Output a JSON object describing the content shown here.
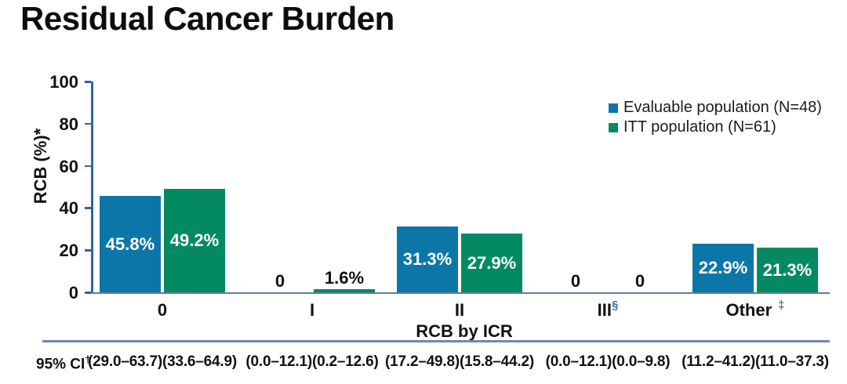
{
  "title": "Residual Cancer Burden",
  "colors": {
    "evaluable_blue": "#0d76a8",
    "itt_green": "#048a62",
    "axis_navy": "#35639b",
    "baseline_slate": "#5f7ca3",
    "separator_slate": "#7188aa",
    "superscript_blue": "#3c6ba5",
    "bar_label_white": "#ffffff",
    "text_black": "#111111"
  },
  "chart_data": {
    "type": "bar",
    "title": "Residual Cancer Burden",
    "xlabel": "RCB by ICR",
    "ylabel": "RCB (%)*",
    "ylim": [
      0,
      100
    ],
    "yticks": [
      0,
      20,
      40,
      60,
      80,
      100
    ],
    "grid": false,
    "legend_position": "top-right",
    "categories": [
      "0",
      "I",
      "II",
      "III",
      "Other"
    ],
    "category_superscripts": [
      "",
      "",
      "",
      "§",
      "‡"
    ],
    "series": [
      {
        "name": "Evaluable population (N=48)",
        "color": "#0d76a8",
        "values": [
          45.8,
          0,
          31.3,
          0,
          22.9
        ],
        "value_labels": [
          "45.8%",
          "0",
          "31.3%",
          "0",
          "22.9%"
        ],
        "ci_95": [
          "(29.0–63.7)",
          "(0.0–12.1)",
          "(17.2–49.8)",
          "(0.0–12.1)",
          "(11.2–41.2)"
        ]
      },
      {
        "name": "ITT population (N=61)",
        "color": "#048a62",
        "values": [
          49.2,
          1.6,
          27.9,
          0,
          21.3
        ],
        "value_labels": [
          "49.2%",
          "1.6%",
          "27.9%",
          "0",
          "21.3%"
        ],
        "ci_95": [
          "(33.6–64.9)",
          "(0.2–12.6)",
          "(15.8–44.2)",
          "(0.0–9.8)",
          "(11.0–37.3)"
        ]
      }
    ],
    "ci_row": {
      "label": "95% CI",
      "label_superscript": "†"
    }
  }
}
